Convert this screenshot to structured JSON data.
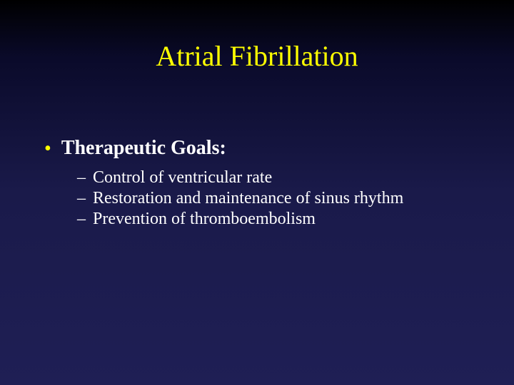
{
  "slide": {
    "background_gradient": [
      "#000000",
      "#0a0a2a",
      "#1a1a4a",
      "#1f1f55"
    ],
    "title": {
      "text": "Atrial Fibrillation",
      "color": "#ffff00",
      "fontsize": 40,
      "font_family": "Times New Roman"
    },
    "bullet": {
      "marker": "•",
      "marker_color": "#ffff00",
      "label": "Therapeutic Goals:",
      "label_color": "#ffffff",
      "label_fontsize": 28,
      "label_weight": "bold",
      "subitems": [
        {
          "marker": "–",
          "text": "Control of ventricular rate",
          "color": "#ffffff",
          "fontsize": 24
        },
        {
          "marker": "–",
          "text": "Restoration and maintenance of sinus rhythm",
          "color": "#ffffff",
          "fontsize": 24
        },
        {
          "marker": "–",
          "text": "Prevention of thromboembolism",
          "color": "#ffffff",
          "fontsize": 24
        }
      ]
    }
  }
}
